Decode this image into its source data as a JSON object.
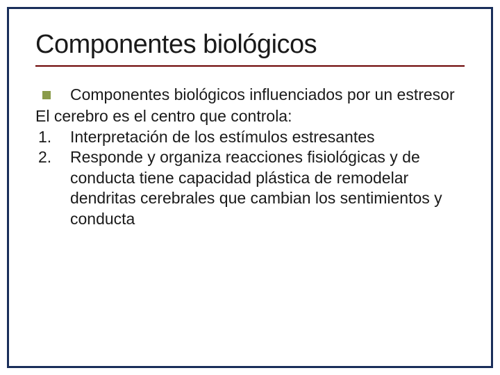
{
  "colors": {
    "border": "#1a2e5a",
    "underline": "#6a0000",
    "bullet": "#8a9b4a",
    "text": "#1a1a1a",
    "background": "#ffffff"
  },
  "typography": {
    "title_fontsize": 38,
    "body_fontsize": 23,
    "font_family": "Arial"
  },
  "title": "Componentes biológicos",
  "bullet": {
    "text": "Componentes biológicos influenciados por un estresor"
  },
  "subtitle": "El cerebro es el centro que controla:",
  "items": [
    {
      "n": "1.",
      "text": "Interpretación de los estímulos estresantes"
    },
    {
      "n": "2.",
      "text": "Responde y organiza reacciones fisiológicas y de conducta tiene capacidad plástica de remodelar dendritas cerebrales que cambian los sentimientos y conducta"
    }
  ]
}
